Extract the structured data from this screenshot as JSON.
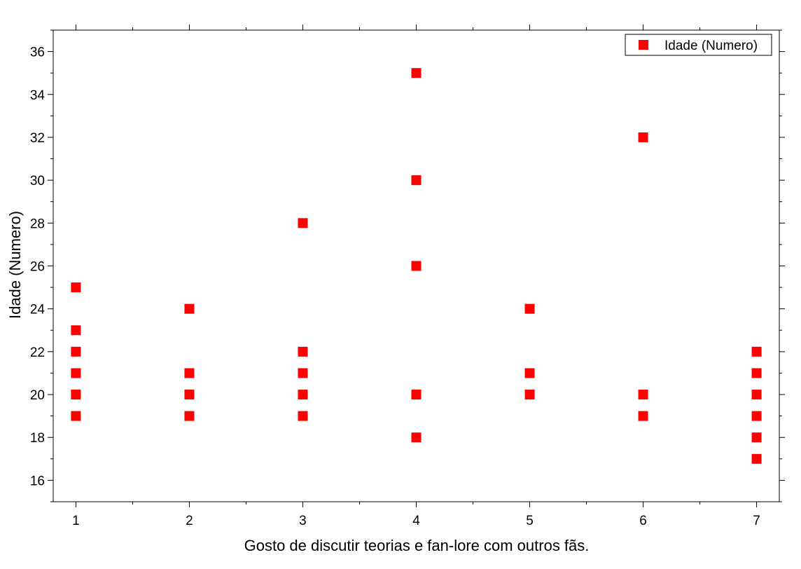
{
  "chart_data": {
    "type": "scatter",
    "xlabel": "Gosto de discutir teorias e fan-lore com outros fãs.",
    "ylabel": "Idade (Numero)",
    "xlim": [
      0.8,
      7.2
    ],
    "ylim": [
      15,
      37
    ],
    "xticks": [
      1,
      2,
      3,
      4,
      5,
      6,
      7
    ],
    "yticks": [
      16,
      18,
      20,
      22,
      24,
      26,
      28,
      30,
      32,
      34,
      36
    ],
    "grid": false,
    "legend_position": "top-right",
    "series": [
      {
        "name": "Idade (Numero)",
        "color": "#ff0000",
        "marker": "square",
        "points": [
          [
            1,
            25
          ],
          [
            1,
            23
          ],
          [
            1,
            22
          ],
          [
            1,
            21
          ],
          [
            1,
            20
          ],
          [
            1,
            19
          ],
          [
            2,
            24
          ],
          [
            2,
            21
          ],
          [
            2,
            20
          ],
          [
            2,
            19
          ],
          [
            3,
            28
          ],
          [
            3,
            22
          ],
          [
            3,
            21
          ],
          [
            3,
            20
          ],
          [
            3,
            19
          ],
          [
            4,
            35
          ],
          [
            4,
            30
          ],
          [
            4,
            26
          ],
          [
            4,
            20
          ],
          [
            4,
            18
          ],
          [
            5,
            24
          ],
          [
            5,
            21
          ],
          [
            5,
            20
          ],
          [
            6,
            32
          ],
          [
            6,
            20
          ],
          [
            6,
            19
          ],
          [
            7,
            22
          ],
          [
            7,
            21
          ],
          [
            7,
            20
          ],
          [
            7,
            19
          ],
          [
            7,
            18
          ],
          [
            7,
            17
          ]
        ]
      }
    ]
  }
}
